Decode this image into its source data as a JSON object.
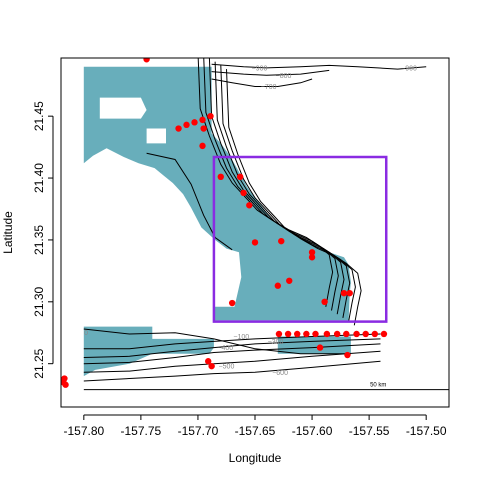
{
  "chart_data": {
    "type": "scatter",
    "title": "",
    "xlabel": "Longitude",
    "ylabel": "Latitude",
    "xlim": [
      -157.82,
      -157.48
    ],
    "ylim": [
      21.215,
      21.497
    ],
    "x_ticks": [
      -157.8,
      -157.75,
      -157.7,
      -157.65,
      -157.6,
      -157.55,
      -157.5
    ],
    "x_tick_labels": [
      "-157.80",
      "-157.75",
      "-157.70",
      "-157.65",
      "-157.60",
      "-157.55",
      "-157.50"
    ],
    "y_ticks": [
      21.25,
      21.3,
      21.35,
      21.4,
      21.45
    ],
    "y_tick_labels": [
      "21.25",
      "21.30",
      "21.35",
      "21.40",
      "21.45"
    ],
    "grid": false,
    "colors": {
      "land": "#68aebb",
      "points": "#ff0000",
      "study_box": "#8a2be2",
      "contour": "#000000",
      "contour_label": "#8a8a8a"
    },
    "land_polygons": [
      [
        [
          -157.8,
          21.49
        ],
        [
          -157.688,
          21.49
        ],
        [
          -157.688,
          21.436
        ],
        [
          -157.68,
          21.428
        ],
        [
          -157.672,
          21.418
        ],
        [
          -157.664,
          21.405
        ],
        [
          -157.657,
          21.393
        ],
        [
          -157.65,
          21.384
        ],
        [
          -157.643,
          21.376
        ],
        [
          -157.636,
          21.368
        ],
        [
          -157.628,
          21.362
        ],
        [
          -157.618,
          21.357
        ],
        [
          -157.607,
          21.351
        ],
        [
          -157.596,
          21.345
        ],
        [
          -157.585,
          21.34
        ],
        [
          -157.572,
          21.336
        ],
        [
          -157.568,
          21.33
        ],
        [
          -157.566,
          21.316
        ],
        [
          -157.567,
          21.306
        ],
        [
          -157.568,
          21.285
        ],
        [
          -157.686,
          21.285
        ],
        [
          -157.686,
          21.296
        ],
        [
          -157.668,
          21.296
        ],
        [
          -157.662,
          21.32
        ],
        [
          -157.664,
          21.34
        ],
        [
          -157.675,
          21.343
        ],
        [
          -157.685,
          21.35
        ],
        [
          -157.697,
          21.36
        ],
        [
          -157.706,
          21.376
        ],
        [
          -157.713,
          21.387
        ],
        [
          -157.722,
          21.396
        ],
        [
          -157.73,
          21.402
        ],
        [
          -157.738,
          21.408
        ],
        [
          -157.752,
          21.412
        ],
        [
          -157.765,
          21.417
        ],
        [
          -157.78,
          21.424
        ],
        [
          -157.792,
          21.418
        ],
        [
          -157.8,
          21.412
        ]
      ],
      [
        [
          -157.8,
          21.28
        ],
        [
          -157.74,
          21.28
        ],
        [
          -157.74,
          21.27
        ],
        [
          -157.686,
          21.27
        ],
        [
          -157.686,
          21.263
        ],
        [
          -157.69,
          21.258
        ],
        [
          -157.74,
          21.258
        ],
        [
          -157.76,
          21.25
        ],
        [
          -157.79,
          21.245
        ],
        [
          -157.8,
          21.24
        ]
      ],
      [
        [
          -157.63,
          21.272
        ],
        [
          -157.566,
          21.272
        ],
        [
          -157.566,
          21.258
        ],
        [
          -157.63,
          21.258
        ]
      ]
    ],
    "land_holes": [
      [
        [
          -157.786,
          21.465
        ],
        [
          -157.75,
          21.465
        ],
        [
          -157.745,
          21.455
        ],
        [
          -157.75,
          21.448
        ],
        [
          -157.786,
          21.448
        ]
      ],
      [
        [
          -157.745,
          21.44
        ],
        [
          -157.728,
          21.44
        ],
        [
          -157.728,
          21.428
        ],
        [
          -157.745,
          21.428
        ]
      ]
    ],
    "contours": [
      {
        "level": 0,
        "label": "0",
        "label_at": [
          -157.798,
          21.275
        ],
        "points": [
          [
            -157.8,
            21.278
          ],
          [
            -157.76,
            21.274
          ],
          [
            -157.72,
            21.275
          ],
          [
            -157.686,
            21.27
          ],
          [
            -157.65,
            21.262
          ],
          [
            -157.61,
            21.258
          ],
          [
            -157.566,
            21.258
          ]
        ]
      },
      {
        "level": -100,
        "label": "−100",
        "label_at": [
          -157.662,
          21.272
        ],
        "points": [
          [
            -157.8,
            21.262
          ],
          [
            -157.76,
            21.262
          ],
          [
            -157.72,
            21.266
          ],
          [
            -157.686,
            21.268
          ],
          [
            -157.65,
            21.27
          ],
          [
            -157.6,
            21.272
          ],
          [
            -157.54,
            21.274
          ]
        ]
      },
      {
        "level": -300,
        "label": "−300",
        "label_at": [
          -157.632,
          21.268
        ],
        "points": [
          [
            -157.8,
            21.255
          ],
          [
            -157.76,
            21.256
          ],
          [
            -157.72,
            21.26
          ],
          [
            -157.686,
            21.263
          ],
          [
            -157.65,
            21.266
          ],
          [
            -157.6,
            21.268
          ],
          [
            -157.54,
            21.27
          ]
        ]
      },
      {
        "level": -400,
        "label": "−400",
        "label_at": [
          -157.676,
          21.263
        ],
        "points": [
          [
            -157.8,
            21.25
          ],
          [
            -157.76,
            21.251
          ],
          [
            -157.72,
            21.255
          ],
          [
            -157.686,
            21.259
          ],
          [
            -157.65,
            21.261
          ],
          [
            -157.6,
            21.263
          ],
          [
            -157.54,
            21.266
          ]
        ]
      },
      {
        "level": -500,
        "label": "−500",
        "label_at": [
          -157.675,
          21.248
        ],
        "points": [
          [
            -157.8,
            21.243
          ],
          [
            -157.76,
            21.244
          ],
          [
            -157.72,
            21.248
          ],
          [
            -157.686,
            21.25
          ],
          [
            -157.65,
            21.252
          ],
          [
            -157.6,
            21.256
          ],
          [
            -157.54,
            21.26
          ]
        ]
      },
      {
        "level": -600,
        "label": "−600",
        "label_at": [
          -157.628,
          21.243
        ],
        "points": [
          [
            -157.8,
            21.236
          ],
          [
            -157.76,
            21.238
          ],
          [
            -157.72,
            21.24
          ],
          [
            -157.686,
            21.242
          ],
          [
            -157.65,
            21.243
          ],
          [
            -157.6,
            21.247
          ],
          [
            -157.54,
            21.252
          ]
        ]
      },
      {
        "level": -700,
        "label": "−700",
        "label_at": [
          -157.638,
          21.474
        ],
        "points": [
          [
            -157.688,
            21.48
          ],
          [
            -157.67,
            21.477
          ],
          [
            -157.65,
            21.474
          ],
          [
            -157.63,
            21.474
          ],
          [
            -157.61,
            21.477
          ],
          [
            -157.6,
            21.48
          ]
        ]
      },
      {
        "level": -800,
        "label": "−800",
        "label_at": [
          -157.625,
          21.483
        ],
        "points": [
          [
            -157.688,
            21.486
          ],
          [
            -157.66,
            21.484
          ],
          [
            -157.64,
            21.483
          ],
          [
            -157.61,
            21.484
          ],
          [
            -157.585,
            21.487
          ]
        ]
      },
      {
        "level": -900,
        "label": "−900",
        "label_at": [
          -157.646,
          21.489
        ],
        "points": [
          [
            -157.688,
            21.492
          ],
          [
            -157.66,
            21.49
          ],
          [
            -157.64,
            21.489
          ],
          [
            -157.61,
            21.49
          ],
          [
            -157.585,
            21.491
          ],
          [
            -157.56,
            21.49
          ],
          [
            -157.525,
            21.488
          ],
          [
            -157.5,
            21.49
          ]
        ]
      },
      {
        "level": -900,
        "label": "−900",
        "label_at": [
          -157.515,
          21.489
        ],
        "points": []
      }
    ],
    "study_box": {
      "xmin": -157.686,
      "xmax": -157.535,
      "ymin": 21.284,
      "ymax": 21.417
    },
    "scale_bar": {
      "label": "50 km"
    },
    "points": {
      "x": [
        -157.745,
        -157.717,
        -157.71,
        -157.703,
        -157.696,
        -157.689,
        -157.695,
        -157.696,
        -157.68,
        -157.663,
        -157.66,
        -157.655,
        -157.65,
        -157.627,
        -157.6,
        -157.6,
        -157.62,
        -157.63,
        -157.67,
        -157.589,
        -157.572,
        -157.567,
        -157.629,
        -157.621,
        -157.613,
        -157.605,
        -157.597,
        -157.587,
        -157.578,
        -157.57,
        -157.561,
        -157.553,
        -157.545,
        -157.537,
        -157.569,
        -157.593,
        -157.691,
        -157.688,
        -157.817,
        -157.818,
        -157.816
      ],
      "y": [
        21.496,
        21.44,
        21.443,
        21.445,
        21.447,
        21.45,
        21.44,
        21.426,
        21.401,
        21.401,
        21.388,
        21.378,
        21.348,
        21.349,
        21.34,
        21.336,
        21.317,
        21.313,
        21.299,
        21.3,
        21.307,
        21.307,
        21.274,
        21.274,
        21.274,
        21.274,
        21.274,
        21.274,
        21.274,
        21.274,
        21.274,
        21.274,
        21.274,
        21.274,
        21.257,
        21.263,
        21.252,
        21.248,
        21.238,
        21.235,
        21.233
      ]
    }
  }
}
